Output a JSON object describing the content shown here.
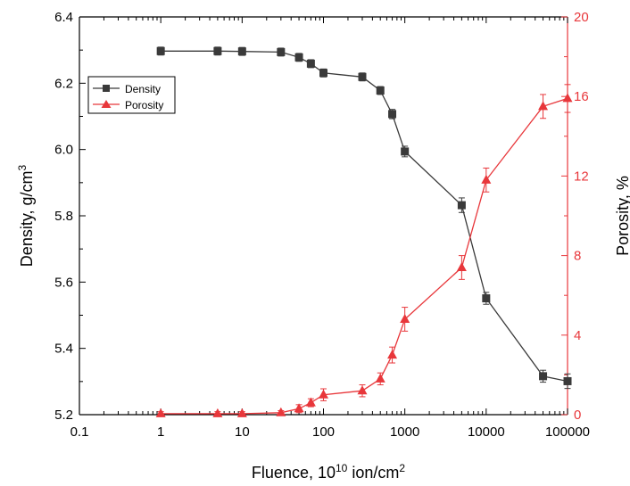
{
  "chart_data": {
    "type": "line",
    "xscale": "log",
    "xlabel": "Fluence, 10",
    "xlabel_sup": "10",
    "xlabel_suffix": " ion/cm",
    "xlabel_sup2": "2",
    "ylabel_left": "Density, g/cm",
    "ylabel_left_sup": "3",
    "ylabel_right": "Porosity, %",
    "xlim": [
      0.1,
      100000
    ],
    "ylim_left": [
      5.2,
      6.4
    ],
    "ylim_right": [
      0,
      20
    ],
    "x_ticks": [
      "0.1",
      "1",
      "10",
      "100",
      "1000",
      "10000",
      "100000"
    ],
    "y_left_ticks": [
      "5.2",
      "5.4",
      "5.6",
      "5.8",
      "6.0",
      "6.2",
      "6.4"
    ],
    "y_right_ticks": [
      "0",
      "4",
      "8",
      "12",
      "16",
      "20"
    ],
    "legend_position": "upper-left",
    "series": [
      {
        "name": "Density",
        "axis": "left",
        "color": "#3a3a3a",
        "marker": "square",
        "x": [
          1,
          5,
          10,
          30,
          50,
          70,
          100,
          300,
          500,
          700,
          1000,
          5000,
          10000,
          50000,
          100000
        ],
        "y": [
          6.297,
          6.297,
          6.296,
          6.294,
          6.278,
          6.259,
          6.231,
          6.219,
          6.178,
          6.107,
          5.994,
          5.832,
          5.551,
          5.316,
          5.301
        ],
        "err": [
          0.012,
          0.012,
          0.012,
          0.012,
          0.012,
          0.012,
          0.012,
          0.012,
          0.012,
          0.014,
          0.016,
          0.022,
          0.018,
          0.018,
          0.022
        ]
      },
      {
        "name": "Porosity",
        "axis": "right",
        "color": "#e8373b",
        "marker": "triangle",
        "x": [
          1,
          5,
          10,
          30,
          50,
          70,
          100,
          300,
          500,
          700,
          1000,
          5000,
          10000,
          50000,
          100000
        ],
        "y": [
          0.05,
          0.05,
          0.05,
          0.1,
          0.3,
          0.6,
          1.0,
          1.2,
          1.8,
          3.0,
          4.8,
          7.4,
          11.8,
          15.5,
          15.9
        ],
        "err": [
          0.1,
          0.1,
          0.1,
          0.1,
          0.2,
          0.2,
          0.3,
          0.3,
          0.3,
          0.4,
          0.6,
          0.6,
          0.6,
          0.6,
          0.7
        ]
      }
    ]
  }
}
